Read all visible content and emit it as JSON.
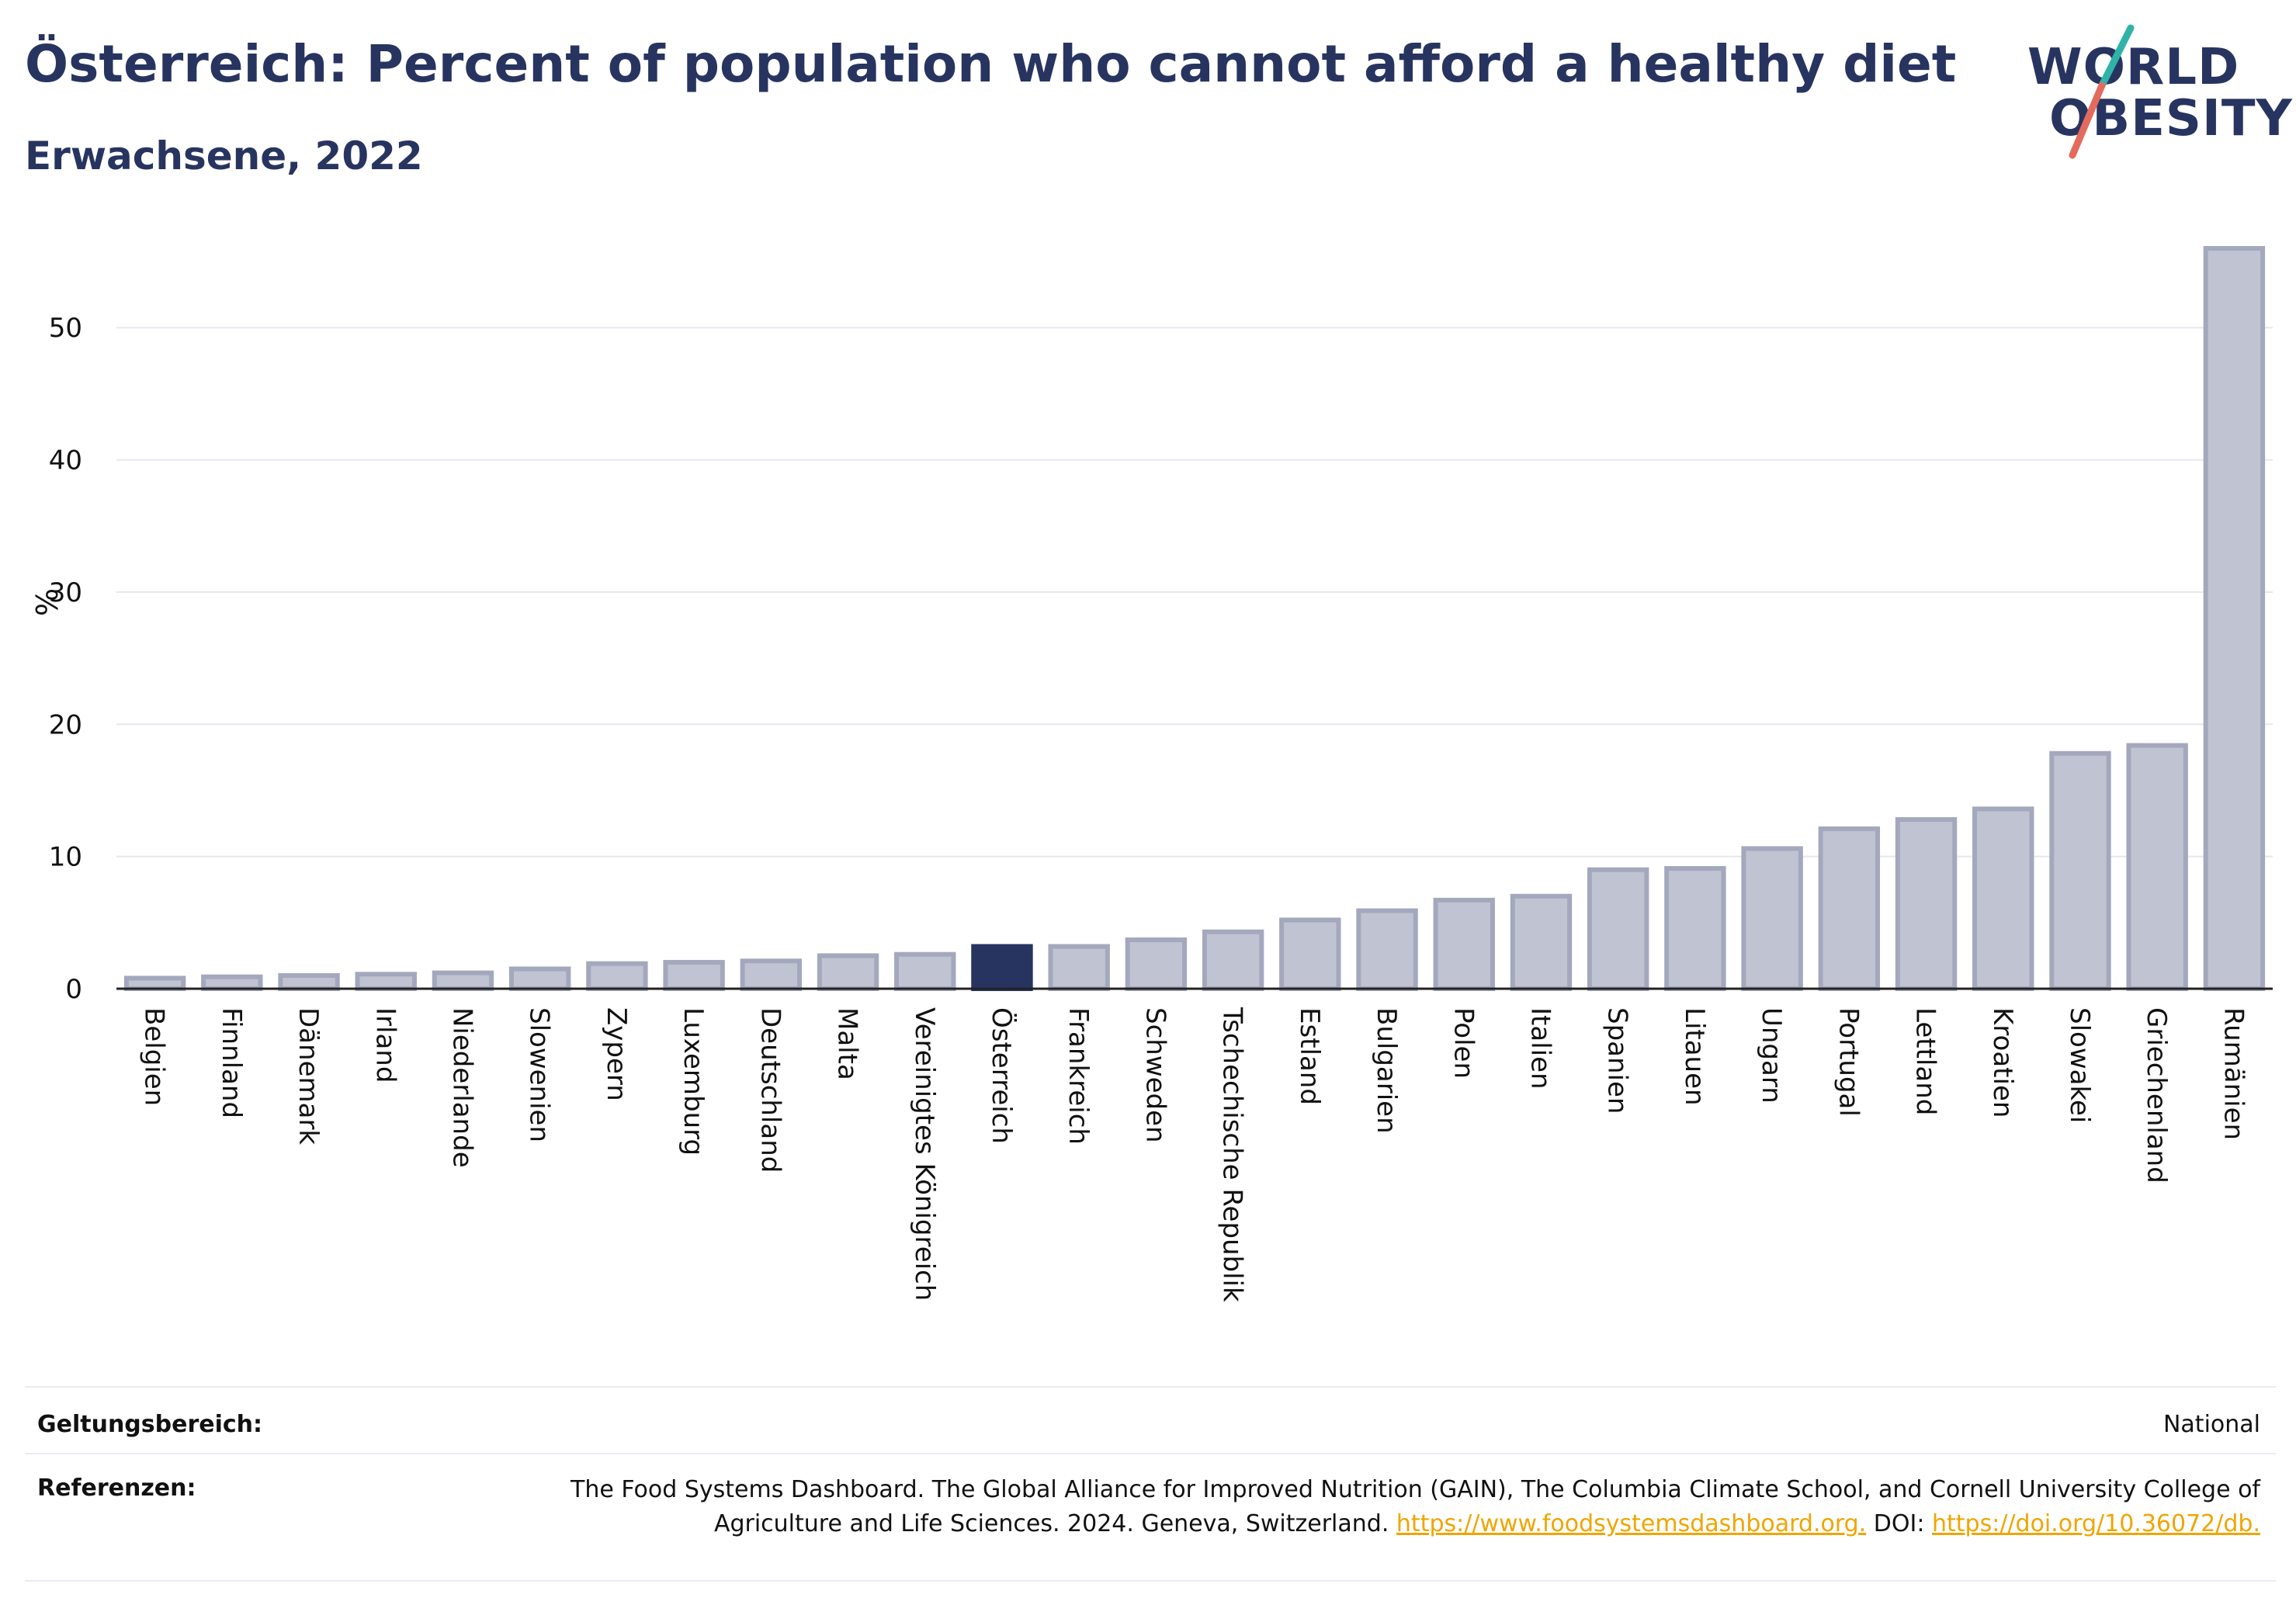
{
  "title": "Österreich: Percent of population who cannot afford a healthy diet",
  "subtitle": "Erwachsene, 2022",
  "logo": {
    "line1": "WORLD",
    "line2": "OBESITY"
  },
  "colors": {
    "bar": "#c0c3d1",
    "bar_border": "#a4a8bd",
    "highlight": "#283460",
    "grid": "#e6e8ef",
    "link": "#f0a500"
  },
  "footer": {
    "scope_label": "Geltungsbereich:",
    "scope_value": "National",
    "refs_label": "Referenzen:",
    "refs_text": "The Food Systems Dashboard. The Global Alliance for Improved Nutrition (GAIN), The Columbia Climate School, and Cornell University College of Agriculture and Life Sciences. 2024. Geneva, Switzerland.",
    "refs_link1": "https://www.foodsystemsdashboard.org.",
    "refs_doi": "DOI:",
    "refs_link2": "https://doi.org/10.36072/db."
  },
  "chart_data": {
    "type": "bar",
    "ylabel": "%",
    "ylim": [
      0,
      56
    ],
    "yticks": [
      0,
      10,
      20,
      30,
      40,
      50
    ],
    "grid": true,
    "highlight": "Österreich",
    "categories": [
      "Belgien",
      "Finnland",
      "Dänemark",
      "Irland",
      "Niederlande",
      "Slowenien",
      "Zypern",
      "Luxemburg",
      "Deutschland",
      "Malta",
      "Vereinigtes Königreich",
      "Österreich",
      "Frankreich",
      "Schweden",
      "Tschechische Republik",
      "Estland",
      "Bulgarien",
      "Polen",
      "Italien",
      "Spanien",
      "Litauen",
      "Ungarn",
      "Portugal",
      "Lettland",
      "Kroatien",
      "Slowakei",
      "Griechenland",
      "Rumänien"
    ],
    "values": [
      0.8,
      0.9,
      1.0,
      1.1,
      1.2,
      1.5,
      1.9,
      2.0,
      2.1,
      2.5,
      2.6,
      3.2,
      3.2,
      3.7,
      4.3,
      5.2,
      5.9,
      6.7,
      7.0,
      9.0,
      9.1,
      10.6,
      12.1,
      12.8,
      13.6,
      17.8,
      18.4,
      56.0
    ]
  }
}
